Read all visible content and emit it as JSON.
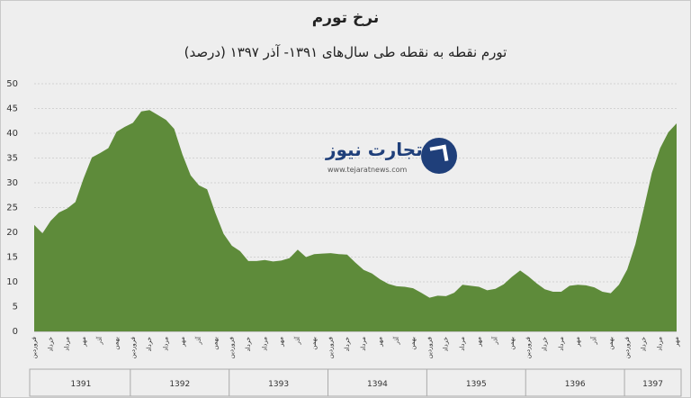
{
  "chart_data": {
    "type": "area",
    "title": "نرخ تورم",
    "subtitle": "تورم نقطه به نقطه طی سال‌های ۱۳۹۱- آذر ۱۳۹۷ (درصد)",
    "ylim": [
      0,
      50
    ],
    "yticks": [
      "0",
      "5",
      "10",
      "15",
      "20",
      "25",
      "30",
      "35",
      "40",
      "45",
      "50"
    ],
    "years": [
      "1391",
      "1392",
      "1393",
      "1394",
      "1395",
      "1396",
      "1397"
    ],
    "month_labels": [
      "فروردین",
      "خرداد",
      "مرداد",
      "مهر",
      "آذر",
      "بهمن"
    ],
    "values": [
      21.5,
      19.8,
      22.3,
      24.0,
      24.8,
      26.1,
      30.9,
      35.1,
      36.0,
      37.0,
      40.3,
      41.3,
      42.1,
      44.4,
      44.7,
      43.7,
      42.7,
      40.9,
      35.7,
      31.5,
      29.5,
      28.7,
      23.9,
      19.7,
      17.3,
      16.2,
      14.2,
      14.2,
      14.4,
      14.1,
      14.3,
      14.8,
      16.5,
      15.0,
      15.6,
      15.7,
      15.8,
      15.6,
      15.5,
      13.9,
      12.4,
      11.7,
      10.5,
      9.6,
      9.1,
      9.0,
      8.7,
      7.8,
      6.8,
      7.2,
      7.1,
      7.8,
      9.4,
      9.2,
      9.0,
      8.3,
      8.6,
      9.5,
      11.0,
      12.3,
      11.1,
      9.7,
      8.5,
      8.0,
      8.0,
      9.2,
      9.4,
      9.3,
      8.9,
      8.0,
      7.7,
      9.4,
      12.5,
      17.6,
      24.7,
      32.0,
      37.0,
      40.2,
      42.0
    ],
    "fill_color": "#5e8b3a",
    "grid": true
  },
  "logo": {
    "text": "تجارت نیوز",
    "url": "www.tejaratnews.com"
  }
}
